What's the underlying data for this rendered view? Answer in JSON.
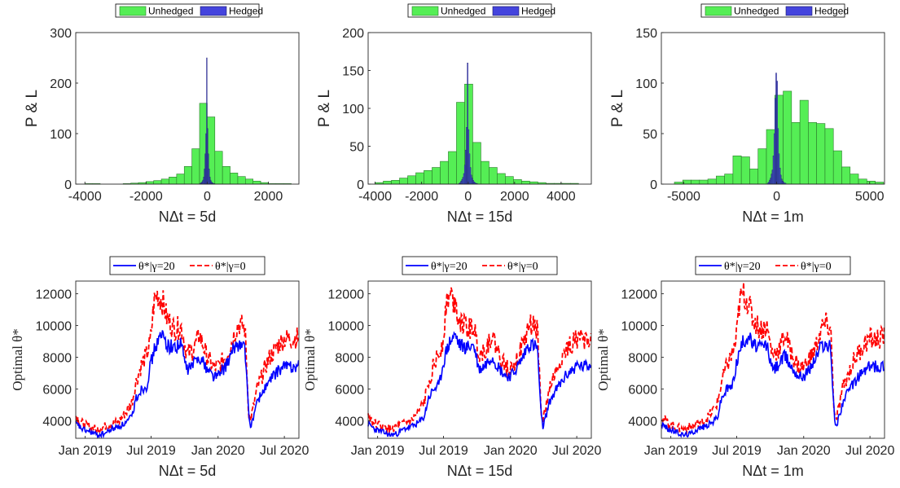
{
  "colors": {
    "unhedged_fill": "#55ee55",
    "unhedged_edge": "#2a7a2a",
    "hedged_fill": "#4444dd",
    "hedged_edge": "#1a1a66",
    "line_gamma20": "#0000ff",
    "line_gamma0": "#ff0000"
  },
  "chart_data": [
    {
      "type": "bar",
      "subtype": "histogram",
      "xlabel": "NΔt = 5d",
      "ylabel": "P & L",
      "xlim": [
        -4300,
        3000
      ],
      "ylim": [
        0,
        300
      ],
      "xticks": [
        -4000,
        -2000,
        0,
        2000
      ],
      "xtick_labels": [
        "-4000",
        "-2000",
        "0",
        "2000"
      ],
      "yticks": [
        0,
        100,
        200,
        300
      ],
      "ytick_labels": [
        "0",
        "100",
        "200",
        "300"
      ],
      "legend": [
        "Unhedged",
        "Hedged"
      ],
      "series": [
        {
          "name": "Unhedged",
          "bin_start": -4000,
          "bin_width": 250,
          "values": [
            1,
            1,
            0,
            0,
            0,
            1,
            2,
            3,
            5,
            7,
            10,
            14,
            20,
            35,
            70,
            160,
            133,
            65,
            35,
            22,
            15,
            10,
            6,
            3,
            1,
            1,
            1
          ]
        },
        {
          "name": "Hedged",
          "bin_start": -250,
          "bin_width": 25,
          "values": [
            1,
            2,
            3,
            5,
            8,
            14,
            30,
            60,
            100,
            250,
            110,
            60,
            30,
            14,
            8,
            5,
            3,
            2,
            1,
            1
          ]
        }
      ]
    },
    {
      "type": "bar",
      "subtype": "histogram",
      "xlabel": "NΔt = 15d",
      "ylabel": "P & L",
      "xlim": [
        -4300,
        5300
      ],
      "ylim": [
        0,
        200
      ],
      "xticks": [
        -4000,
        -2000,
        0,
        2000,
        4000
      ],
      "xtick_labels": [
        "-4000",
        "-2000",
        "0",
        "2000",
        "4000"
      ],
      "yticks": [
        0,
        50,
        100,
        150,
        200
      ],
      "ytick_labels": [
        "0",
        "50",
        "100",
        "150",
        "200"
      ],
      "legend": [
        "Unhedged",
        "Hedged"
      ],
      "series": [
        {
          "name": "Unhedged",
          "bin_start": -4000,
          "bin_width": 350,
          "values": [
            2,
            4,
            5,
            8,
            11,
            15,
            18,
            22,
            30,
            43,
            108,
            132,
            55,
            30,
            22,
            14,
            10,
            6,
            4,
            3,
            2,
            1,
            1,
            1,
            1
          ]
        },
        {
          "name": "Hedged",
          "bin_start": -400,
          "bin_width": 40,
          "values": [
            1,
            2,
            4,
            6,
            9,
            14,
            25,
            45,
            75,
            160,
            72,
            40,
            22,
            12,
            8,
            5,
            3,
            2,
            1,
            1
          ]
        }
      ]
    },
    {
      "type": "bar",
      "subtype": "histogram",
      "xlabel": "NΔt = 1m",
      "ylabel": "P & L",
      "xlim": [
        -6200,
        5800
      ],
      "ylim": [
        0,
        150
      ],
      "xticks": [
        -5000,
        0,
        5000
      ],
      "xtick_labels": [
        "-5000",
        "0",
        "5000"
      ],
      "yticks": [
        0,
        50,
        100,
        150
      ],
      "ytick_labels": [
        "0",
        "50",
        "100",
        "150"
      ],
      "legend": [
        "Unhedged",
        "Hedged"
      ],
      "series": [
        {
          "name": "Unhedged",
          "bin_start": -5500,
          "bin_width": 450,
          "values": [
            2,
            4,
            4,
            4,
            5,
            8,
            10,
            28,
            27,
            15,
            35,
            54,
            88,
            92,
            61,
            83,
            61,
            60,
            55,
            33,
            17,
            10,
            5,
            3,
            2
          ]
        },
        {
          "name": "Hedged",
          "bin_start": -500,
          "bin_width": 50,
          "values": [
            1,
            2,
            4,
            6,
            10,
            14,
            28,
            50,
            85,
            110,
            102,
            55,
            30,
            16,
            9,
            5,
            3,
            2,
            1,
            1
          ]
        }
      ]
    },
    {
      "type": "line",
      "xlabel": "NΔt = 5d",
      "ylabel": "Optimal θ*",
      "xlim": [
        0,
        613
      ],
      "ylim": [
        2900,
        12800
      ],
      "xticks": [
        26,
        207,
        391,
        573
      ],
      "xtick_labels": [
        "Jan 2019",
        "Jul 2019",
        "Jan 2020",
        "Jul 2020"
      ],
      "yticks": [
        4000,
        6000,
        8000,
        10000,
        12000
      ],
      "ytick_labels": [
        "4000",
        "6000",
        "8000",
        "10000",
        "12000"
      ],
      "legend": [
        "θ*|γ=20",
        "θ*|γ=0"
      ],
      "series": [
        {
          "name": "θ*|γ=20",
          "style": "solid"
        },
        {
          "name": "θ*|γ=0",
          "style": "dashed"
        }
      ]
    },
    {
      "type": "line",
      "xlabel": "NΔt = 15d",
      "ylabel": "Optimal θ*",
      "xlim": [
        0,
        613
      ],
      "ylim": [
        2900,
        12800
      ],
      "xticks": [
        26,
        207,
        391,
        573
      ],
      "xtick_labels": [
        "Jan 2019",
        "Jul 2019",
        "Jan 2020",
        "Jul 2020"
      ],
      "yticks": [
        4000,
        6000,
        8000,
        10000,
        12000
      ],
      "ytick_labels": [
        "4000",
        "6000",
        "8000",
        "10000",
        "12000"
      ],
      "legend": [
        "θ*|γ=20",
        "θ*|γ=0"
      ],
      "series": [
        {
          "name": "θ*|γ=20",
          "style": "solid"
        },
        {
          "name": "θ*|γ=0",
          "style": "dashed"
        }
      ]
    },
    {
      "type": "line",
      "xlabel": "NΔt = 1m",
      "ylabel": "Optimal θ*",
      "xlim": [
        0,
        613
      ],
      "ylim": [
        2900,
        12800
      ],
      "xticks": [
        26,
        207,
        391,
        573
      ],
      "xtick_labels": [
        "Jan 2019",
        "Jul 2019",
        "Jan 2020",
        "Jul 2020"
      ],
      "yticks": [
        4000,
        6000,
        8000,
        10000,
        12000
      ],
      "ytick_labels": [
        "4000",
        "6000",
        "8000",
        "10000",
        "12000"
      ],
      "legend": [
        "θ*|γ=20",
        "θ*|γ=0"
      ],
      "series": [
        {
          "name": "θ*|γ=20",
          "style": "solid"
        },
        {
          "name": "θ*|γ=0",
          "style": "dashed"
        }
      ]
    }
  ],
  "line_shape": {
    "days": [
      0,
      20,
      40,
      60,
      80,
      100,
      120,
      140,
      155,
      165,
      180,
      195,
      205,
      215,
      225,
      240,
      250,
      270,
      290,
      305,
      320,
      340,
      360,
      380,
      395,
      410,
      425,
      440,
      450,
      465,
      475,
      480,
      500,
      515,
      530,
      545,
      560,
      575,
      590,
      613
    ],
    "gamma20": [
      3800,
      3450,
      3300,
      3100,
      3200,
      3500,
      3650,
      3900,
      4300,
      5400,
      6000,
      6200,
      7500,
      8400,
      9000,
      9400,
      8800,
      8600,
      8800,
      7200,
      7500,
      8100,
      7300,
      6800,
      6900,
      7400,
      8000,
      8800,
      8800,
      8600,
      4300,
      3600,
      5300,
      5900,
      6400,
      6900,
      7200,
      7500,
      7400,
      7500
    ],
    "gamma0": [
      4300,
      3800,
      3600,
      3450,
      3650,
      3800,
      4000,
      4600,
      5200,
      6400,
      7500,
      8200,
      9000,
      11500,
      12000,
      11400,
      10500,
      9800,
      9900,
      8200,
      8400,
      9400,
      8100,
      7300,
      7500,
      8000,
      8700,
      9800,
      10100,
      9800,
      4400,
      4000,
      6200,
      7000,
      7900,
      8400,
      8900,
      9200,
      9100,
      9300
    ]
  }
}
